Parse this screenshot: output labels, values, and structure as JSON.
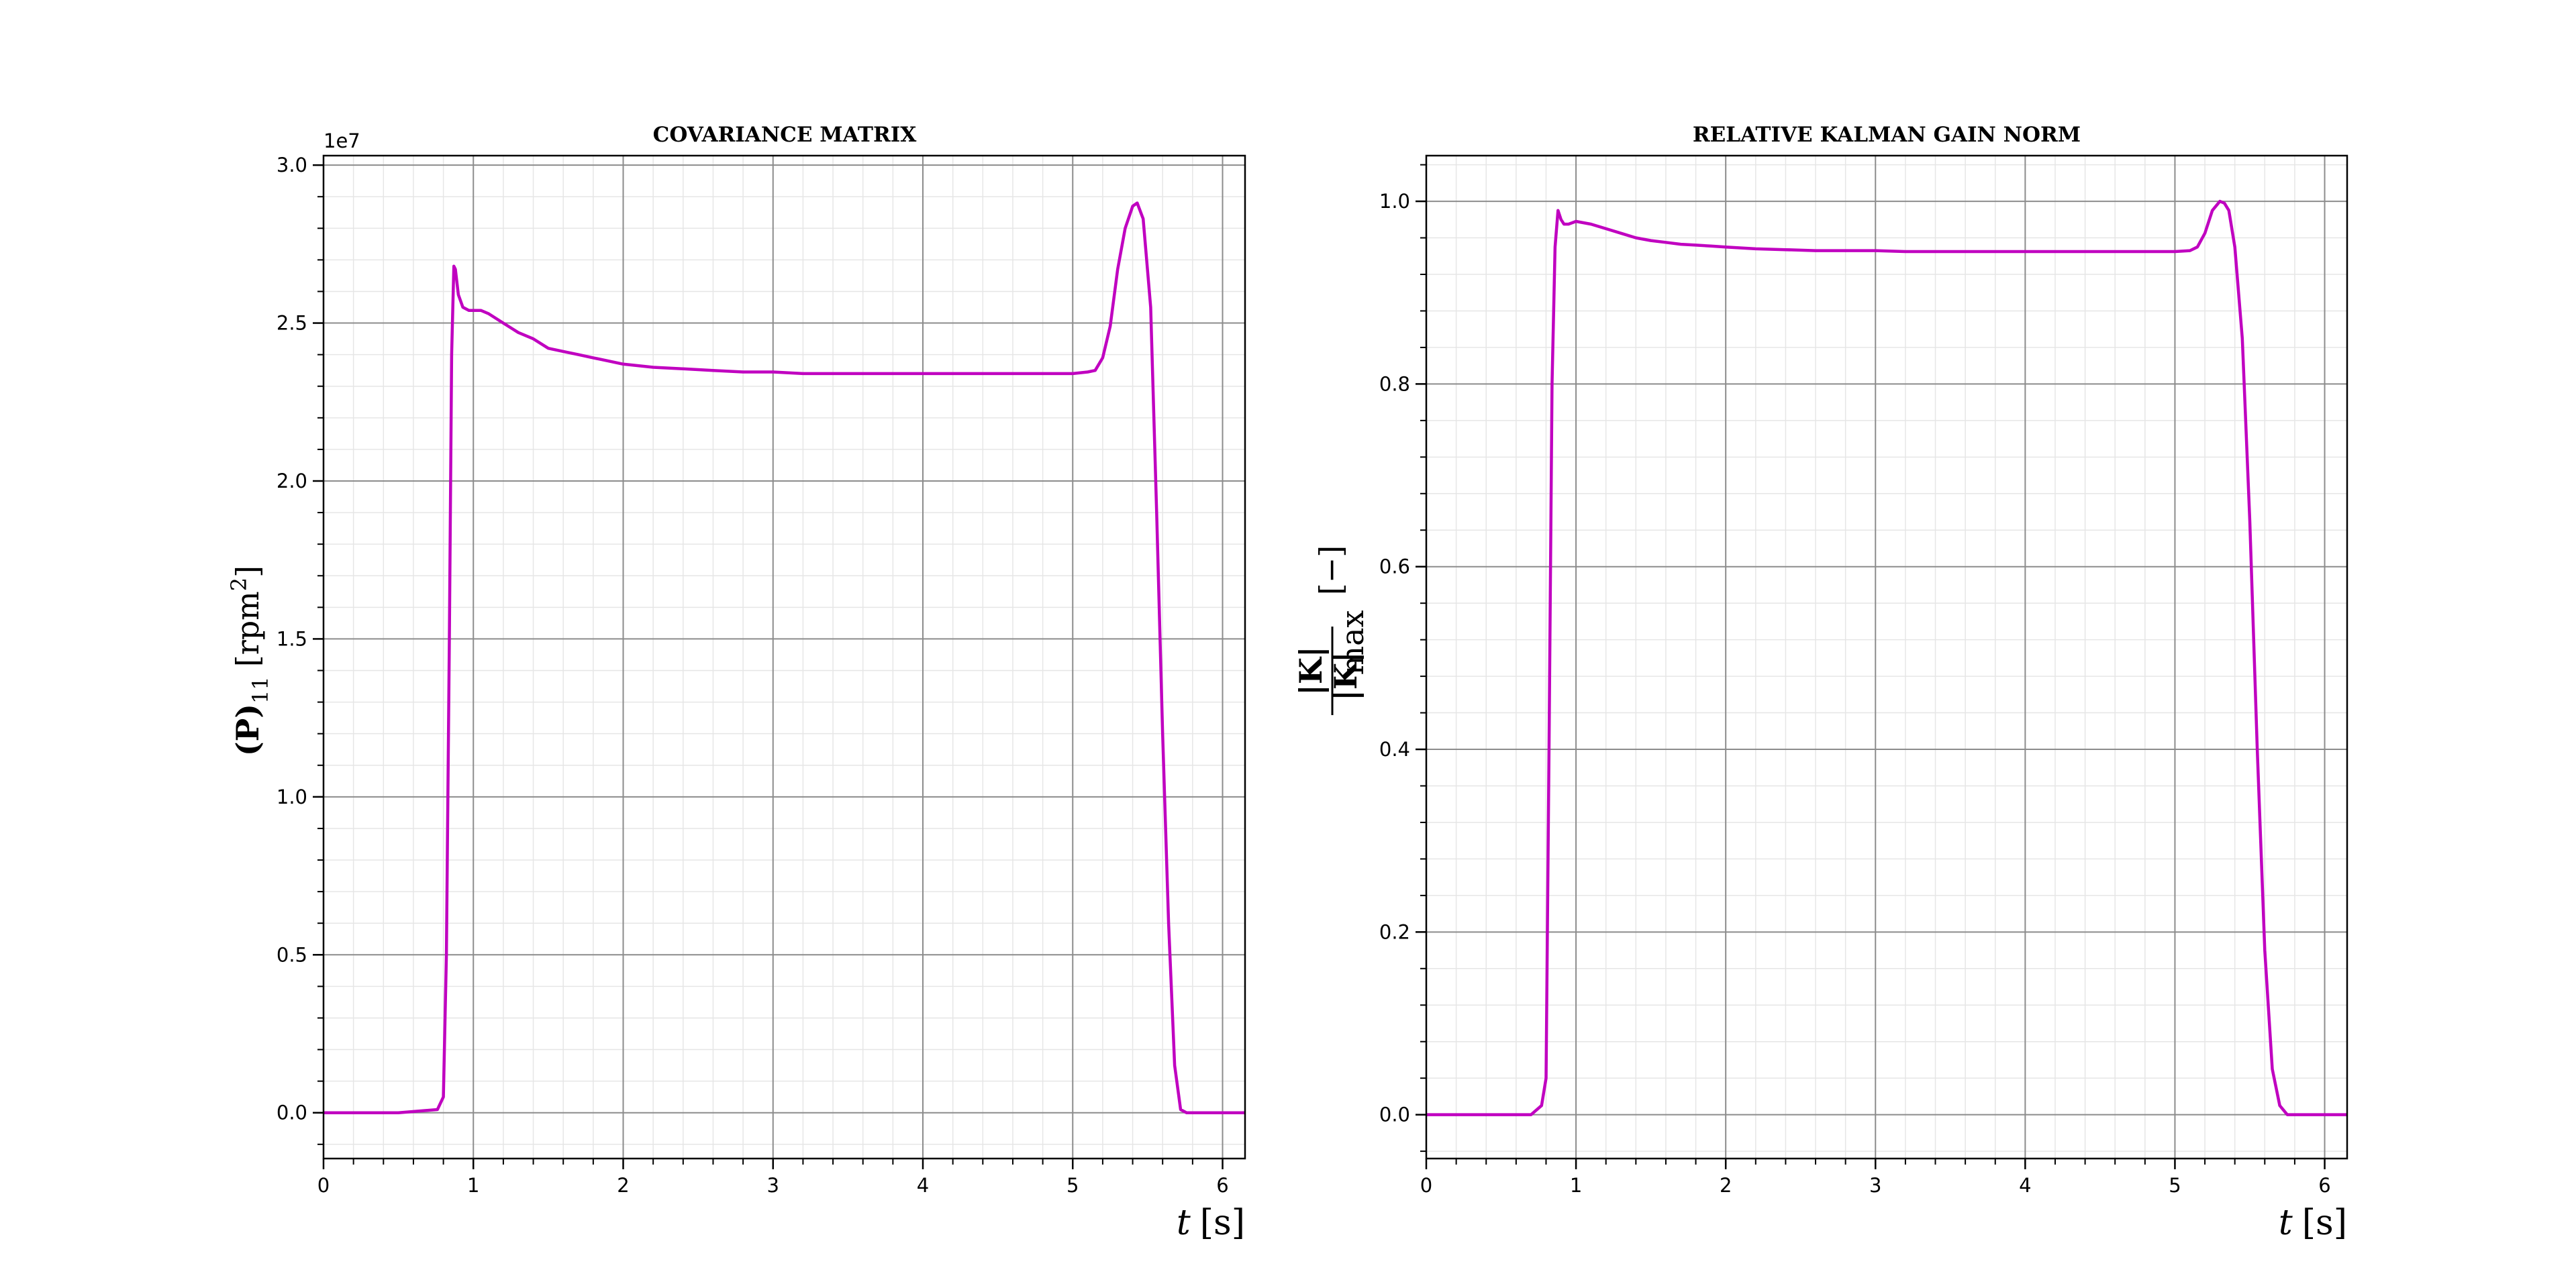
{
  "figure": {
    "background": "#ffffff",
    "line_color": "#c000c0"
  },
  "chart_data": [
    {
      "type": "line",
      "title": "COVARIANCE MATRIX",
      "xlabel": {
        "var": "t",
        "unit": "[s]"
      },
      "ylabel": {
        "base": "(P)",
        "sub": "11",
        "unit_open": "[rpm",
        "sup": "2",
        "unit_close": "]"
      },
      "y_offset_label": "1e7",
      "xlim": [
        0,
        6.15
      ],
      "ylim": [
        -1.45,
        30.3
      ],
      "x_ticks": [
        0,
        1,
        2,
        3,
        4,
        5,
        6
      ],
      "y_ticks": [
        0,
        5,
        10,
        15,
        20,
        25,
        30
      ],
      "x_tick_labels": [
        "0",
        "1",
        "2",
        "3",
        "4",
        "5",
        "6"
      ],
      "y_tick_labels": [
        "0.0",
        "0.5",
        "1.0",
        "1.5",
        "2.0",
        "2.5",
        "3.0"
      ],
      "grid": {
        "major": true,
        "minor": true
      },
      "series": [
        {
          "x": [
            0,
            0.5,
            0.76,
            0.8,
            0.82,
            0.84,
            0.855,
            0.87,
            0.88,
            0.9,
            0.93,
            0.97,
            1.0,
            1.05,
            1.1,
            1.2,
            1.3,
            1.4,
            1.5,
            1.6,
            1.7,
            1.8,
            1.9,
            2.0,
            2.2,
            2.4,
            2.6,
            2.8,
            3.0,
            3.2,
            3.4,
            3.6,
            3.8,
            4.0,
            4.2,
            4.4,
            4.6,
            4.8,
            5.0,
            5.1,
            5.15,
            5.2,
            5.25,
            5.3,
            5.35,
            5.4,
            5.43,
            5.47,
            5.52,
            5.56,
            5.6,
            5.64,
            5.68,
            5.72,
            5.76,
            5.8,
            6.15
          ],
          "y": [
            0,
            0,
            0.1,
            0.5,
            5,
            15,
            24,
            26.8,
            26.7,
            25.9,
            25.5,
            25.4,
            25.4,
            25.4,
            25.3,
            25.0,
            24.7,
            24.5,
            24.2,
            24.1,
            24.0,
            23.9,
            23.8,
            23.7,
            23.6,
            23.55,
            23.5,
            23.45,
            23.45,
            23.4,
            23.4,
            23.4,
            23.4,
            23.4,
            23.4,
            23.4,
            23.4,
            23.4,
            23.4,
            23.45,
            23.5,
            23.9,
            24.9,
            26.7,
            28.0,
            28.7,
            28.8,
            28.3,
            25.5,
            19,
            12,
            6,
            1.5,
            0.1,
            0,
            0,
            0
          ]
        }
      ]
    },
    {
      "type": "line",
      "title": "RELATIVE KALMAN GAIN NORM",
      "xlabel": {
        "var": "t",
        "unit": "[s]"
      },
      "ylabel": {
        "num": "|K|",
        "den": "|K|",
        "den_sub": "max",
        "unit": "[−]"
      },
      "xlim": [
        0,
        6.15
      ],
      "ylim": [
        -0.048,
        1.05
      ],
      "x_ticks": [
        0,
        1,
        2,
        3,
        4,
        5,
        6
      ],
      "y_ticks": [
        0,
        0.2,
        0.4,
        0.6,
        0.8,
        1.0
      ],
      "x_tick_labels": [
        "0",
        "1",
        "2",
        "3",
        "4",
        "5",
        "6"
      ],
      "y_tick_labels": [
        "0.0",
        "0.2",
        "0.4",
        "0.6",
        "0.8",
        "1.0"
      ],
      "grid": {
        "major": true,
        "minor": true
      },
      "series": [
        {
          "x": [
            0,
            0.7,
            0.77,
            0.8,
            0.82,
            0.84,
            0.86,
            0.88,
            0.9,
            0.92,
            0.95,
            1.0,
            1.1,
            1.2,
            1.3,
            1.4,
            1.5,
            1.6,
            1.7,
            1.8,
            1.9,
            2.0,
            2.2,
            2.4,
            2.6,
            2.8,
            3.0,
            3.2,
            3.4,
            3.6,
            3.8,
            4.0,
            4.2,
            4.4,
            4.6,
            4.8,
            5.0,
            5.1,
            5.15,
            5.2,
            5.25,
            5.3,
            5.33,
            5.36,
            5.4,
            5.45,
            5.5,
            5.55,
            5.6,
            5.65,
            5.7,
            5.75,
            5.8,
            6.15
          ],
          "y": [
            0,
            0,
            0.01,
            0.04,
            0.4,
            0.8,
            0.95,
            0.99,
            0.98,
            0.975,
            0.975,
            0.978,
            0.975,
            0.97,
            0.965,
            0.96,
            0.957,
            0.955,
            0.953,
            0.952,
            0.951,
            0.95,
            0.948,
            0.947,
            0.946,
            0.946,
            0.946,
            0.945,
            0.945,
            0.945,
            0.945,
            0.945,
            0.945,
            0.945,
            0.945,
            0.945,
            0.945,
            0.946,
            0.95,
            0.965,
            0.99,
            1.0,
            0.998,
            0.99,
            0.95,
            0.85,
            0.65,
            0.4,
            0.18,
            0.05,
            0.01,
            0,
            0,
            0
          ]
        }
      ]
    }
  ]
}
